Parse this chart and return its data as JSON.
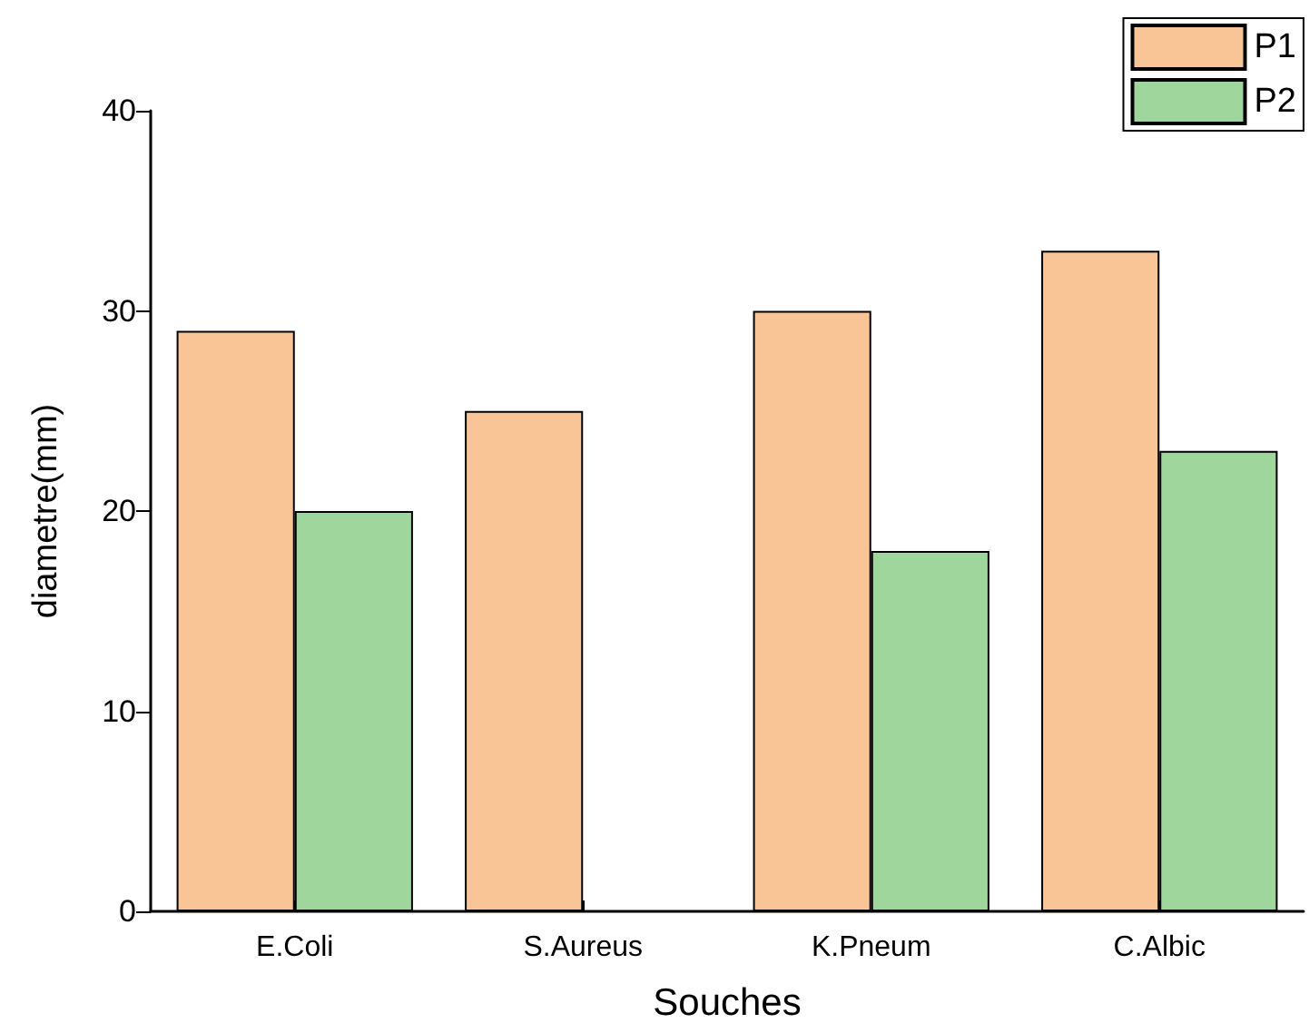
{
  "chart_data": {
    "type": "bar",
    "xlabel": "Souches",
    "ylabel": "diametre(mm)",
    "categories": [
      "E.Coli",
      "S.Aureus",
      "K.Pneum",
      "C.Albic"
    ],
    "series": [
      {
        "name": "P1",
        "color": "#f9c597",
        "values": [
          29,
          25,
          30,
          33
        ]
      },
      {
        "name": "P2",
        "color": "#9fd69b",
        "values": [
          20,
          null,
          18,
          23
        ]
      }
    ],
    "ylim": [
      0,
      40
    ],
    "yticks": [
      0,
      10,
      20,
      30,
      40
    ],
    "grid": false,
    "legend": "top right"
  }
}
